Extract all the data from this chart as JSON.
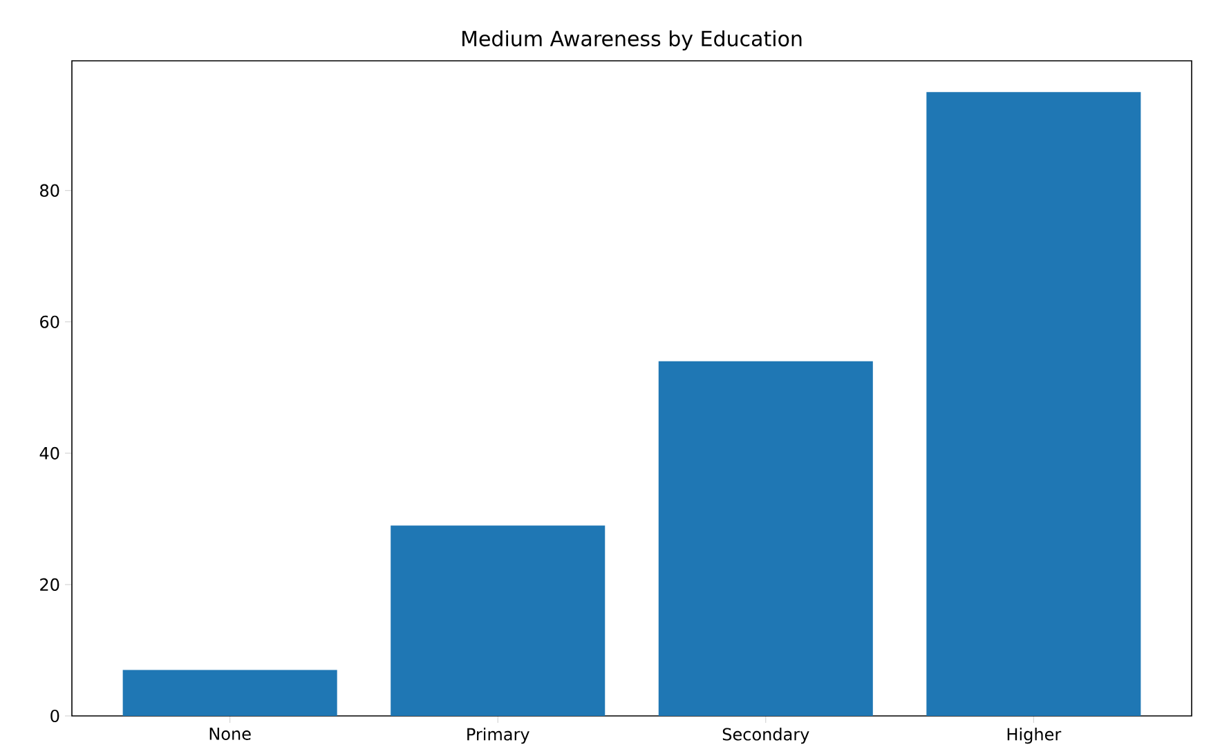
{
  "chart_data": {
    "type": "bar",
    "title": "Medium Awareness by Education",
    "categories": [
      "None",
      "Primary",
      "Secondary",
      "Higher"
    ],
    "values": [
      7,
      29,
      54,
      95
    ],
    "color": "#1f77b4",
    "ylim": [
      0,
      99.75
    ],
    "yticks": [
      0,
      20,
      40,
      60,
      80
    ]
  }
}
